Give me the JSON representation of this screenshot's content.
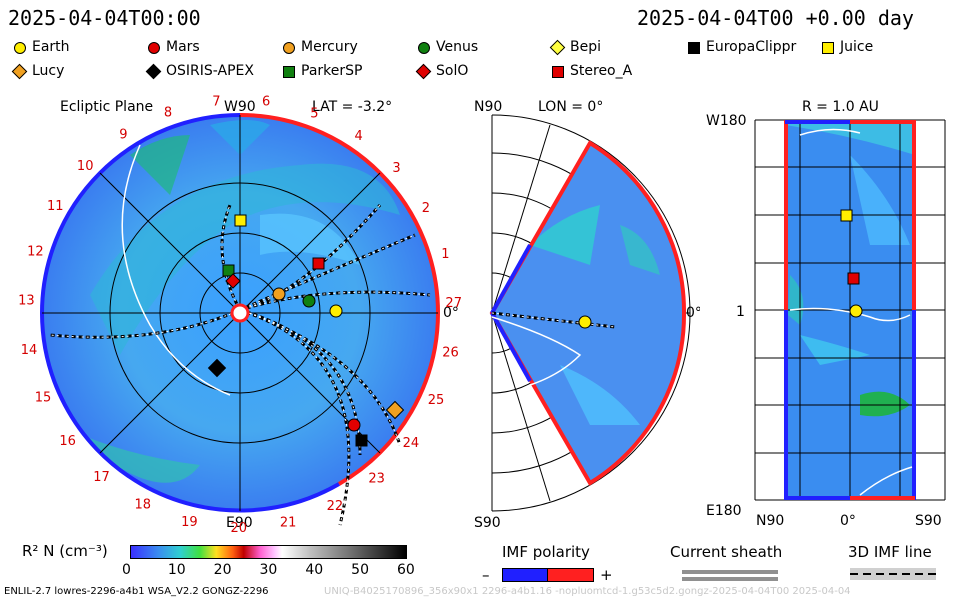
{
  "header": {
    "date_left": "2025-04-04T00:00",
    "date_right": "2025-04-04T00 +0.00 day"
  },
  "legend": [
    {
      "name": "Earth",
      "shape": "circle",
      "color": "#ffee00"
    },
    {
      "name": "Mars",
      "shape": "circle",
      "color": "#e00000"
    },
    {
      "name": "Mercury",
      "shape": "circle",
      "color": "#f0a020"
    },
    {
      "name": "Venus",
      "shape": "circle",
      "color": "#108010"
    },
    {
      "name": "Bepi",
      "shape": "diamond",
      "color": "#ffff40"
    },
    {
      "name": "EuropaClippr",
      "shape": "square",
      "color": "#000000"
    },
    {
      "name": "Juice",
      "shape": "square",
      "color": "#ffee00"
    },
    {
      "name": "Lucy",
      "shape": "diamond",
      "color": "#f0a020"
    },
    {
      "name": "OSIRIS-APEX",
      "shape": "diamond",
      "color": "#000000"
    },
    {
      "name": "ParkerSP",
      "shape": "square",
      "color": "#108010"
    },
    {
      "name": "SolO",
      "shape": "diamond",
      "color": "#e00000"
    },
    {
      "name": "Stereo_A",
      "shape": "square",
      "color": "#e00000"
    }
  ],
  "panels": {
    "ecliptic": {
      "title": "Ecliptic Plane",
      "top_label": "W90",
      "bottom_label": "E90",
      "lat": "LAT = -3.2°",
      "right_label": "0°"
    },
    "meridional": {
      "lon": "LON = 0°",
      "top_label": "N90",
      "bottom_label": "S90",
      "right_label": "0°"
    },
    "radial": {
      "r": "R = 1.0 AU",
      "top_label": "W180",
      "bottom_label": "E180",
      "mid_label": "1",
      "x_left": "N90",
      "x_mid": "0°",
      "x_right": "S90"
    }
  },
  "carrington_labels": [
    "1",
    "2",
    "3",
    "4",
    "5",
    "6",
    "7",
    "8",
    "9",
    "10",
    "11",
    "12",
    "13",
    "14",
    "15",
    "16",
    "17",
    "18",
    "19",
    "20",
    "21",
    "22",
    "23",
    "24",
    "25",
    "26",
    "27"
  ],
  "colorbar": {
    "title": "R² N (cm⁻³)",
    "ticks": [
      "0",
      "10",
      "20",
      "30",
      "40",
      "50",
      "60"
    ]
  },
  "imf_polarity": {
    "title": "IMF polarity",
    "minus": "–",
    "plus": "+"
  },
  "current_sheath": {
    "title": "Current sheath"
  },
  "imf_line": {
    "title": "3D IMF line"
  },
  "footer": {
    "left": "ENLIL-2.7 lowres-2296-a4b1 WSA_V2.2 GONGZ-2296",
    "right": "UNIQ-B4025170896_356x90x1 2296-a4b1.16 -nopluomtcd-1.g53c5d2.gongz-2025-04-04T00   2025-04-04"
  }
}
